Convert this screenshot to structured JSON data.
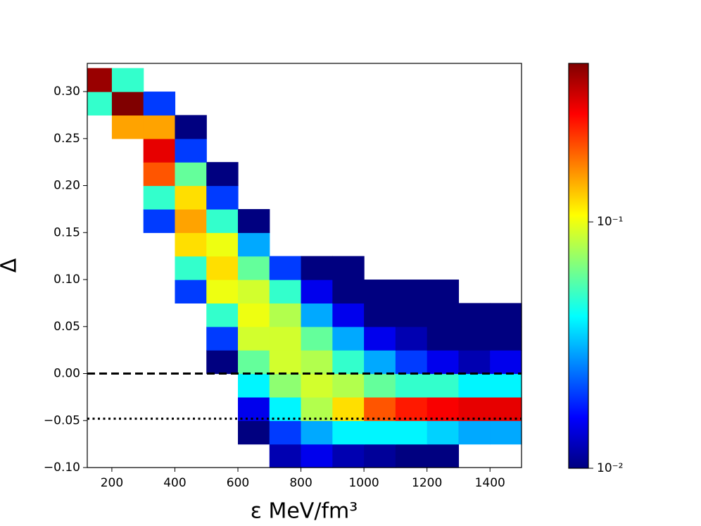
{
  "chart_data": {
    "type": "heatmap",
    "x_label": "ε MeV/fm³",
    "y_label": "Δ",
    "xlim": [
      122,
      1500
    ],
    "ylim": [
      -0.1,
      0.33
    ],
    "xticks": [
      200,
      400,
      600,
      800,
      1000,
      1200,
      1400
    ],
    "yticks": [
      {
        "value": -0.1,
        "label": "−0.10"
      },
      {
        "value": -0.05,
        "label": "−0.05"
      },
      {
        "value": 0,
        "label": "0.00"
      },
      {
        "value": 0.05,
        "label": "0.05"
      },
      {
        "value": 0.1,
        "label": "0.10"
      },
      {
        "value": 0.15,
        "label": "0.15"
      },
      {
        "value": 0.2,
        "label": "0.20"
      },
      {
        "value": 0.25,
        "label": "0.25"
      },
      {
        "value": 0.3,
        "label": "0.30"
      }
    ],
    "xbins": [
      122,
      200,
      300,
      400,
      500,
      600,
      700,
      800,
      900,
      1000,
      1100,
      1200,
      1300,
      1400,
      1500
    ],
    "ybins": [
      -0.1,
      -0.075,
      -0.05,
      -0.025,
      0,
      0.025,
      0.05,
      0.075,
      0.1,
      0.125,
      0.15,
      0.175,
      0.2,
      0.225,
      0.25,
      0.275,
      0.3,
      0.325
    ],
    "z": [
      [
        null,
        null,
        null,
        null,
        null,
        null,
        0.012,
        0.015,
        0.012,
        0.011,
        0.01,
        0.01,
        null,
        null
      ],
      [
        null,
        null,
        null,
        null,
        null,
        0.01,
        0.02,
        0.03,
        0.04,
        0.04,
        0.04,
        0.035,
        0.03,
        0.03
      ],
      [
        null,
        null,
        null,
        null,
        null,
        0.015,
        0.04,
        0.08,
        0.12,
        0.2,
        0.25,
        0.28,
        0.3,
        0.3
      ],
      [
        null,
        null,
        null,
        null,
        null,
        0.04,
        0.07,
        0.09,
        0.08,
        0.06,
        0.05,
        0.05,
        0.04,
        0.04
      ],
      [
        null,
        null,
        null,
        null,
        0.01,
        0.06,
        0.09,
        0.08,
        0.05,
        0.03,
        0.02,
        0.015,
        0.012,
        0.015
      ],
      [
        null,
        null,
        null,
        null,
        0.02,
        0.09,
        0.09,
        0.06,
        0.03,
        0.015,
        0.012,
        0.01,
        0.01,
        0.01
      ],
      [
        null,
        null,
        null,
        null,
        0.05,
        0.1,
        0.08,
        0.03,
        0.015,
        0.01,
        0.01,
        0.01,
        0.01,
        0.01
      ],
      [
        null,
        null,
        null,
        0.02,
        0.1,
        0.09,
        0.05,
        0.015,
        0.01,
        0.01,
        0.01,
        0.01,
        null,
        null
      ],
      [
        null,
        null,
        null,
        0.05,
        0.12,
        0.06,
        0.02,
        0.01,
        0.01,
        null,
        null,
        null,
        null,
        null
      ],
      [
        null,
        null,
        null,
        0.12,
        0.1,
        0.03,
        null,
        null,
        null,
        null,
        null,
        null,
        null,
        null
      ],
      [
        null,
        null,
        0.02,
        0.15,
        0.05,
        0.01,
        null,
        null,
        null,
        null,
        null,
        null,
        null,
        null
      ],
      [
        null,
        null,
        0.05,
        0.12,
        0.02,
        null,
        null,
        null,
        null,
        null,
        null,
        null,
        null,
        null
      ],
      [
        null,
        null,
        0.2,
        0.06,
        0.01,
        null,
        null,
        null,
        null,
        null,
        null,
        null,
        null,
        null
      ],
      [
        null,
        null,
        0.3,
        0.02,
        null,
        null,
        null,
        null,
        null,
        null,
        null,
        null,
        null,
        null
      ],
      [
        null,
        0.15,
        0.15,
        0.01,
        null,
        null,
        null,
        null,
        null,
        null,
        null,
        null,
        null,
        null
      ],
      [
        0.05,
        0.44,
        0.02,
        null,
        null,
        null,
        null,
        null,
        null,
        null,
        null,
        null,
        null,
        null
      ],
      [
        0.4,
        0.05,
        null,
        null,
        null,
        null,
        null,
        null,
        null,
        null,
        null,
        null,
        null,
        null
      ]
    ],
    "colormap": "jet",
    "color_scale": "log",
    "clim": [
      0.01,
      0.44
    ],
    "cticks": [
      {
        "value": 0.01,
        "label": "10⁻²"
      },
      {
        "value": 0.1,
        "label": "10⁻¹"
      }
    ],
    "hlines": [
      {
        "value": 0,
        "style": "dashed",
        "color": "#000000"
      },
      {
        "value": -0.048,
        "style": "dotted",
        "color": "#000000"
      }
    ]
  }
}
